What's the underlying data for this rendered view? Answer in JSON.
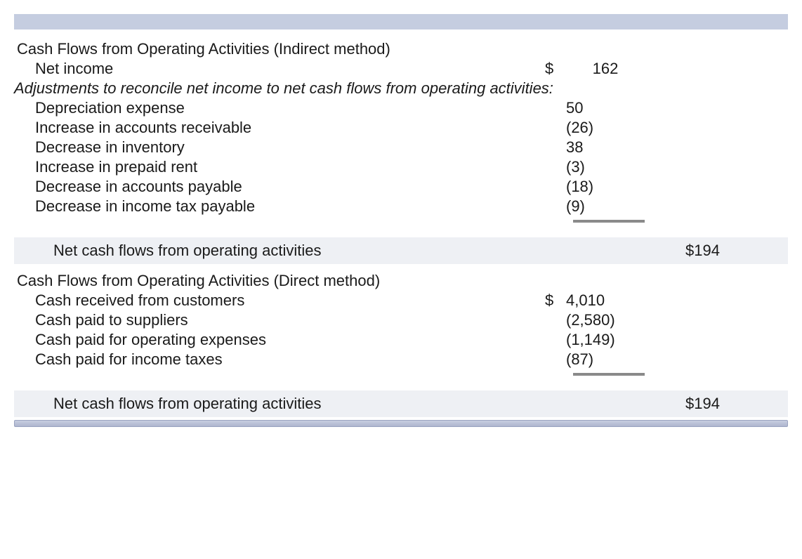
{
  "colors": {
    "band_top": "#c5cde0",
    "band_light": "#eef0f4",
    "rule": "#8a8a8a",
    "text": "#1a1a1a"
  },
  "indirect": {
    "heading": "Cash Flows from Operating Activities (Indirect method)",
    "net_income_label": "Net income",
    "net_income_dollar": "$",
    "net_income_value": "162",
    "adjustments_note": "Adjustments to reconcile net income to net cash flows from operating activities:",
    "items": [
      {
        "label": "Depreciation expense",
        "value": "50"
      },
      {
        "label": "Increase in accounts receivable",
        "value": "(26)"
      },
      {
        "label": "Decrease in inventory",
        "value": "38"
      },
      {
        "label": "Increase in prepaid rent",
        "value": "(3)"
      },
      {
        "label": "Decrease in accounts payable",
        "value": "(18)"
      },
      {
        "label": "Decrease in income tax payable",
        "value": "(9)"
      }
    ],
    "total_label": "Net cash flows from operating activities",
    "total_value": "$194"
  },
  "direct": {
    "heading": "Cash Flows from Operating Activities (Direct method)",
    "items": [
      {
        "label": "Cash received from customers",
        "dollar": "$",
        "value": "4,010"
      },
      {
        "label": "Cash paid to suppliers",
        "dollar": "",
        "value": "(2,580)"
      },
      {
        "label": "Cash paid for operating expenses",
        "dollar": "",
        "value": "(1,149)"
      },
      {
        "label": "Cash paid for income taxes",
        "dollar": "",
        "value": "(87)"
      }
    ],
    "total_label": "Net cash flows from operating activities",
    "total_value": "$194"
  }
}
